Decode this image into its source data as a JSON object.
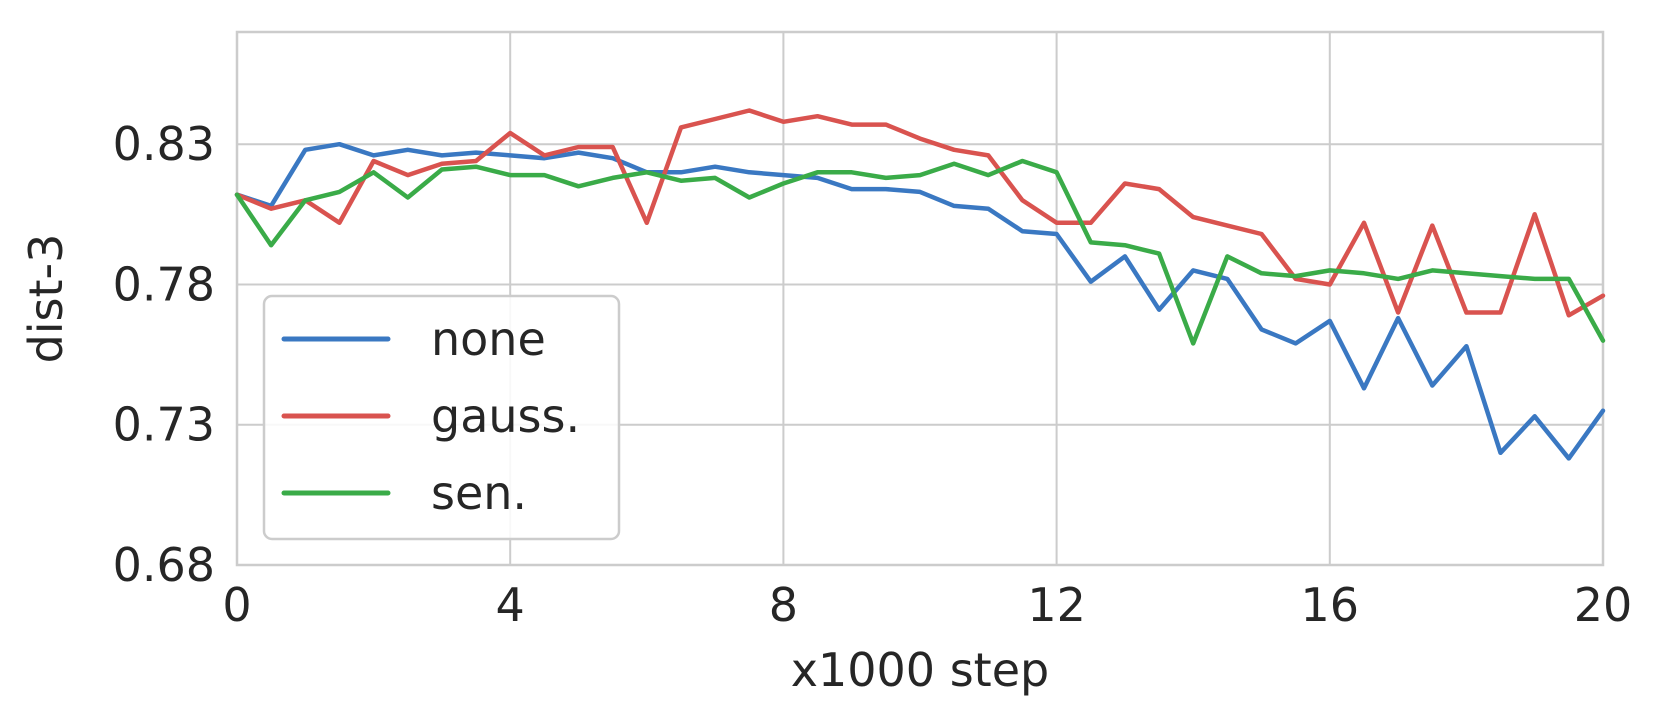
{
  "chart_data": {
    "type": "line",
    "xlabel": "x1000 step",
    "ylabel": "dist-3",
    "xlim": [
      0,
      20
    ],
    "ylim": [
      0.68,
      0.87
    ],
    "xticks": [
      0,
      4,
      8,
      12,
      16,
      20
    ],
    "yticks": [
      0.68,
      0.73,
      0.78,
      0.83
    ],
    "xtick_labels": [
      "0",
      "4",
      "8",
      "12",
      "16",
      "20"
    ],
    "ytick_labels": [
      "0.68",
      "0.73",
      "0.78",
      "0.83"
    ],
    "grid": true,
    "legend_position": "center-left",
    "x": [
      0,
      0.5,
      1,
      1.5,
      2,
      2.5,
      3,
      3.5,
      4,
      4.5,
      5,
      5.5,
      6,
      6.5,
      7,
      7.5,
      8,
      8.5,
      9,
      9.5,
      10,
      10.5,
      11,
      11.5,
      12,
      12.5,
      13,
      13.5,
      14,
      14.5,
      15,
      15.5,
      16,
      16.5,
      17,
      17.5,
      18,
      18.5,
      19,
      19.5,
      20
    ],
    "series": [
      {
        "name": "none",
        "color": "#3a78c2",
        "values": [
          0.812,
          0.808,
          0.828,
          0.83,
          0.826,
          0.828,
          0.826,
          0.827,
          0.826,
          0.825,
          0.827,
          0.825,
          0.82,
          0.82,
          0.822,
          0.82,
          0.819,
          0.818,
          0.814,
          0.814,
          0.813,
          0.808,
          0.807,
          0.799,
          0.798,
          0.781,
          0.79,
          0.771,
          0.785,
          0.782,
          0.764,
          0.759,
          0.767,
          0.743,
          0.768,
          0.744,
          0.758,
          0.72,
          0.733,
          0.718,
          0.735
        ]
      },
      {
        "name": "gauss.",
        "color": "#d9534f",
        "values": [
          0.812,
          0.807,
          0.81,
          0.802,
          0.824,
          0.819,
          0.823,
          0.824,
          0.834,
          0.826,
          0.829,
          0.829,
          0.802,
          0.836,
          0.839,
          0.842,
          0.838,
          0.84,
          0.837,
          0.837,
          0.832,
          0.828,
          0.826,
          0.81,
          0.802,
          0.802,
          0.816,
          0.814,
          0.804,
          0.801,
          0.798,
          0.782,
          0.78,
          0.802,
          0.77,
          0.801,
          0.77,
          0.77,
          0.805,
          0.769,
          0.776
        ]
      },
      {
        "name": "sen.",
        "color": "#3aab48",
        "values": [
          0.812,
          0.794,
          0.81,
          0.813,
          0.82,
          0.811,
          0.821,
          0.822,
          0.819,
          0.819,
          0.815,
          0.818,
          0.82,
          0.817,
          0.818,
          0.811,
          0.816,
          0.82,
          0.82,
          0.818,
          0.819,
          0.823,
          0.819,
          0.824,
          0.82,
          0.795,
          0.794,
          0.791,
          0.759,
          0.79,
          0.784,
          0.783,
          0.785,
          0.784,
          0.782,
          0.785,
          0.784,
          0.783,
          0.782,
          0.782,
          0.76
        ]
      }
    ]
  }
}
